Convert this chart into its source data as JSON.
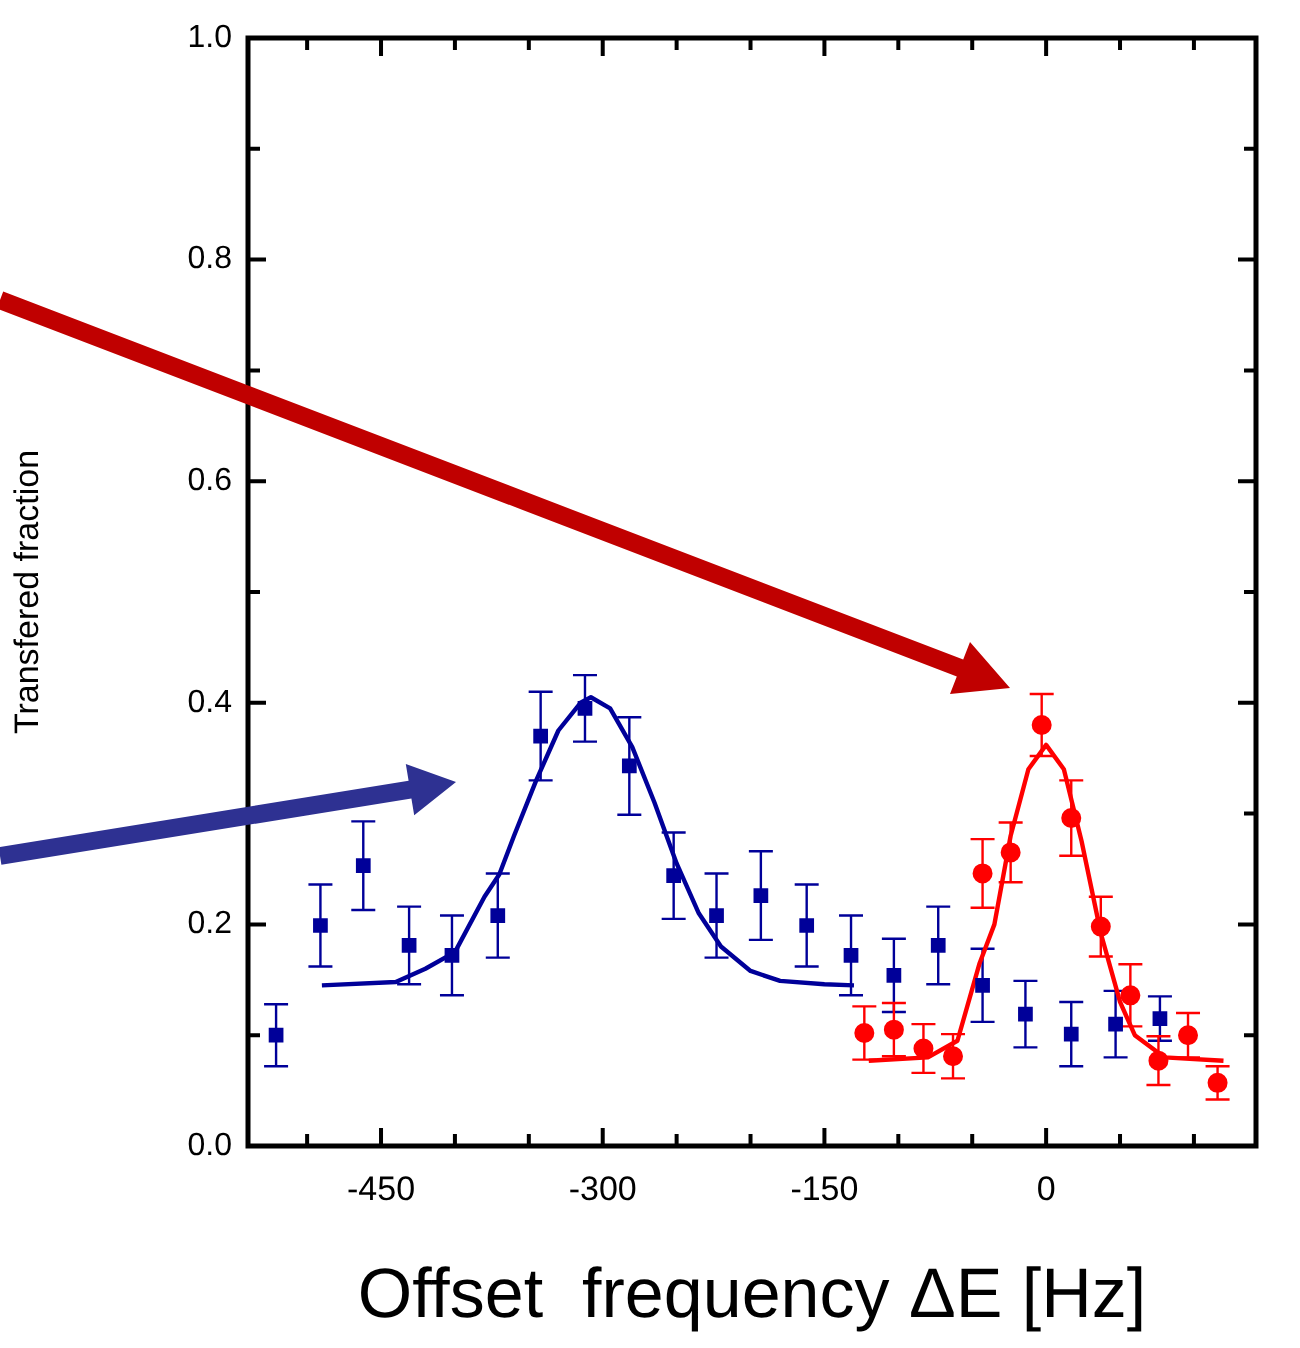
{
  "chart_data": {
    "type": "scatter",
    "xlabel": "Offset  frequency ΔE [Hz]",
    "ylabel": "Transfered fraction",
    "xlim": [
      -540,
      142
    ],
    "ylim": [
      0,
      1
    ],
    "xticks": [
      {
        "value": -500,
        "label": null
      },
      -450,
      {
        "value": -400,
        "label": null
      },
      {
        "value": -350,
        "label": null
      },
      -300,
      {
        "value": -250,
        "label": null
      },
      {
        "value": -200,
        "label": null
      },
      -150,
      {
        "value": -100,
        "label": null
      },
      {
        "value": -50,
        "label": null
      },
      0,
      {
        "value": 50,
        "label": null
      },
      {
        "value": 100,
        "label": null
      }
    ],
    "yticks": [
      {
        "value": 0,
        "label": "0.0"
      },
      {
        "value": 0.1,
        "label": null
      },
      0.2,
      {
        "value": 0.3,
        "label": null
      },
      0.4,
      {
        "value": 0.5,
        "label": null
      },
      0.6,
      {
        "value": 0.7,
        "label": null
      },
      0.8,
      {
        "value": 0.9,
        "label": null
      },
      {
        "value": 1,
        "label": "1.0"
      }
    ],
    "grid": false,
    "legend": false,
    "series": [
      {
        "marker": "square",
        "color": "#000099",
        "x": [
          -521,
          -491,
          -462,
          -431,
          -402,
          -371,
          -342,
          -312,
          -282,
          -252,
          -223,
          -193,
          -162,
          -132,
          -103,
          -73,
          -43,
          -14,
          17,
          47,
          77
        ],
        "values": [
          0.1,
          0.199,
          0.253,
          0.181,
          0.172,
          0.208,
          0.37,
          0.395,
          0.343,
          0.244,
          0.208,
          0.226,
          0.199,
          0.172,
          0.154,
          0.181,
          0.145,
          0.119,
          0.101,
          0.11,
          0.115
        ],
        "errors": [
          0.028,
          0.037,
          0.04,
          0.035,
          0.036,
          0.038,
          0.04,
          0.03,
          0.044,
          0.039,
          0.038,
          0.04,
          0.037,
          0.036,
          0.033,
          0.035,
          0.033,
          0.03,
          0.029,
          0.03,
          0.02
        ]
      },
      {
        "type": "line",
        "marker": "none",
        "color": "#000099",
        "x": [
          -490,
          -440,
          -420,
          -400,
          -380,
          -370,
          -360,
          -345,
          -330,
          -315,
          -308,
          -295,
          -280,
          -265,
          -250,
          -235,
          -220,
          -200,
          -180,
          -150,
          -130
        ],
        "values": [
          0.145,
          0.148,
          0.16,
          0.175,
          0.225,
          0.245,
          0.28,
          0.33,
          0.375,
          0.4,
          0.405,
          0.395,
          0.36,
          0.31,
          0.255,
          0.21,
          0.18,
          0.158,
          0.149,
          0.146,
          0.145
        ]
      },
      {
        "marker": "circle",
        "color": "#ff0000",
        "x": [
          -123,
          -103,
          -83,
          -63,
          -43,
          -24,
          -3,
          17,
          37,
          57,
          76,
          96,
          116
        ],
        "values": [
          0.102,
          0.105,
          0.088,
          0.081,
          0.246,
          0.265,
          0.38,
          0.296,
          0.198,
          0.136,
          0.077,
          0.1,
          0.057
        ],
        "errors": [
          0.024,
          0.024,
          0.022,
          0.02,
          0.031,
          0.027,
          0.028,
          0.034,
          0.027,
          0.028,
          0.022,
          0.02,
          0.015
        ]
      },
      {
        "type": "line",
        "marker": "none",
        "color": "#ff0000",
        "x": [
          -120,
          -80,
          -60,
          -45,
          -35,
          -24,
          -12,
          0,
          12,
          24,
          37,
          50,
          60,
          80,
          120
        ],
        "values": [
          0.077,
          0.08,
          0.095,
          0.165,
          0.2,
          0.28,
          0.34,
          0.362,
          0.34,
          0.275,
          0.192,
          0.13,
          0.1,
          0.08,
          0.077
        ]
      }
    ]
  }
}
